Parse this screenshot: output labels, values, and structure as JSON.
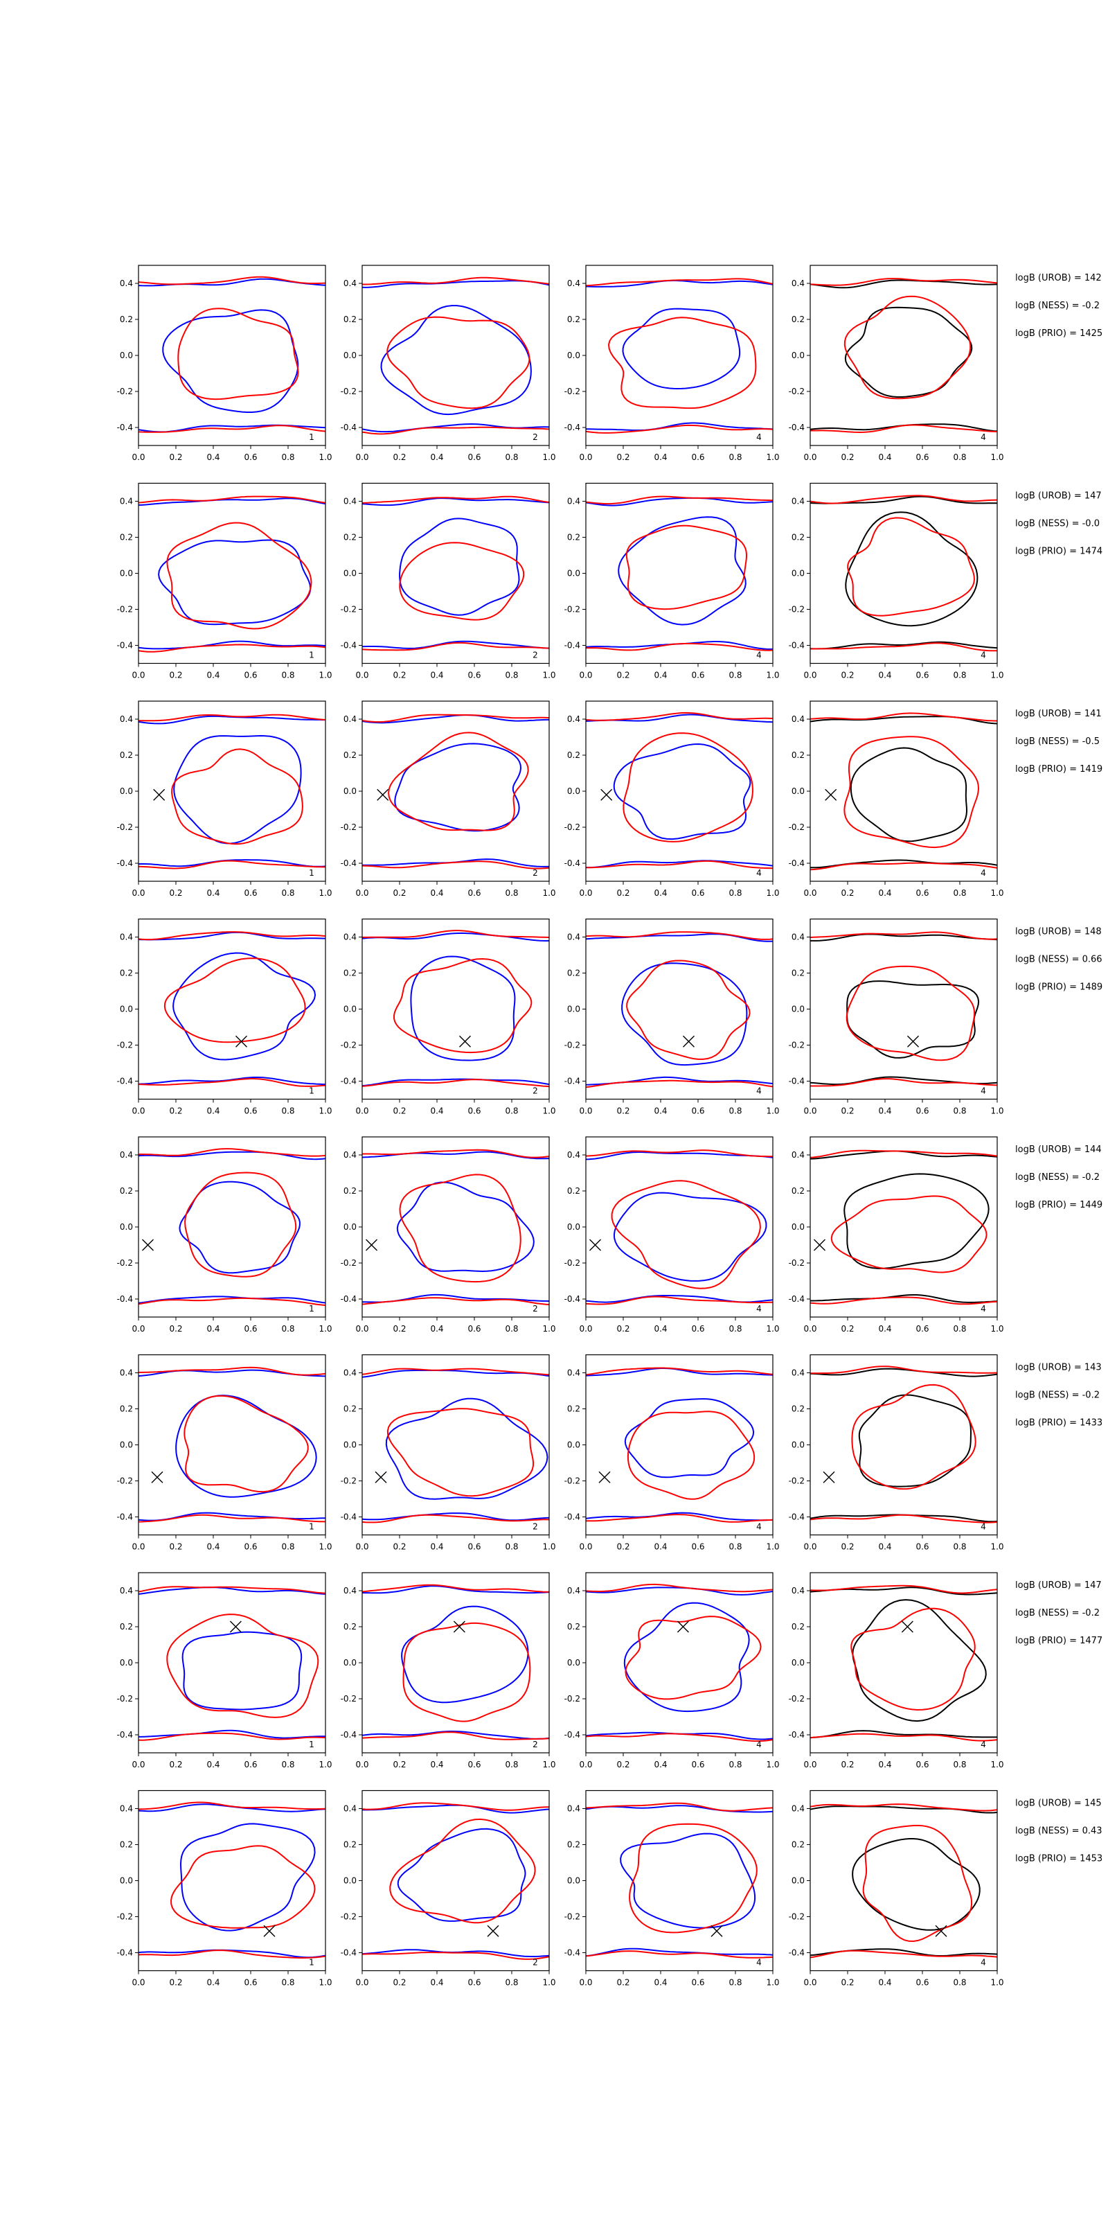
{
  "figure": {
    "columns": [
      {
        "index_label": "1",
        "curves": [
          "blue",
          "red"
        ]
      },
      {
        "index_label": "2",
        "curves": [
          "blue",
          "red"
        ]
      },
      {
        "index_label": "4",
        "curves": [
          "blue",
          "red"
        ]
      },
      {
        "index_label": "4",
        "curves": [
          "black",
          "red"
        ]
      }
    ],
    "colors": {
      "blue": "#0000ff",
      "red": "#ff0000",
      "black": "#000000",
      "axes": "#000000"
    }
  },
  "chart_data": {
    "type": "contour",
    "xlim": [
      0.0,
      1.0
    ],
    "ylim": [
      -0.5,
      0.5
    ],
    "xticks": [
      "0.0",
      "0.2",
      "0.4",
      "0.6",
      "0.8",
      "1.0"
    ],
    "yticks": [
      "-0.4",
      "-0.2",
      "0.0",
      "0.2",
      "0.4"
    ],
    "rows": [
      {
        "marker": null,
        "annotations": [
          "logB (UROB) = 142",
          "logB (NESS) = -0.2",
          "logB (PRIO) = 1425"
        ]
      },
      {
        "marker": null,
        "annotations": [
          "logB (UROB) = 147",
          "logB (NESS) = -0.0",
          "logB (PRIO) = 1474"
        ]
      },
      {
        "marker": [
          0.11,
          -0.02
        ],
        "annotations": [
          "logB (UROB) = 141",
          "logB (NESS) = -0.5",
          "logB (PRIO) = 1419"
        ]
      },
      {
        "marker": [
          0.55,
          -0.18
        ],
        "annotations": [
          "logB (UROB) = 148",
          "logB (NESS) = 0.66",
          "logB (PRIO) = 1489"
        ]
      },
      {
        "marker": [
          0.05,
          -0.1
        ],
        "annotations": [
          "logB (UROB) = 144",
          "logB (NESS) = -0.2",
          "logB (PRIO) = 1449"
        ]
      },
      {
        "marker": [
          0.1,
          -0.18
        ],
        "annotations": [
          "logB (UROB) = 143",
          "logB (NESS) = -0.2",
          "logB (PRIO) = 1433"
        ]
      },
      {
        "marker": [
          0.52,
          0.2
        ],
        "annotations": [
          "logB (UROB) = 147",
          "logB (NESS) = -0.2",
          "logB (PRIO) = 1477"
        ]
      },
      {
        "marker": [
          0.7,
          -0.28
        ],
        "annotations": [
          "logB (UROB) = 145",
          "logB (NESS) = 0.43",
          "logB (PRIO) = 1453"
        ]
      }
    ]
  }
}
